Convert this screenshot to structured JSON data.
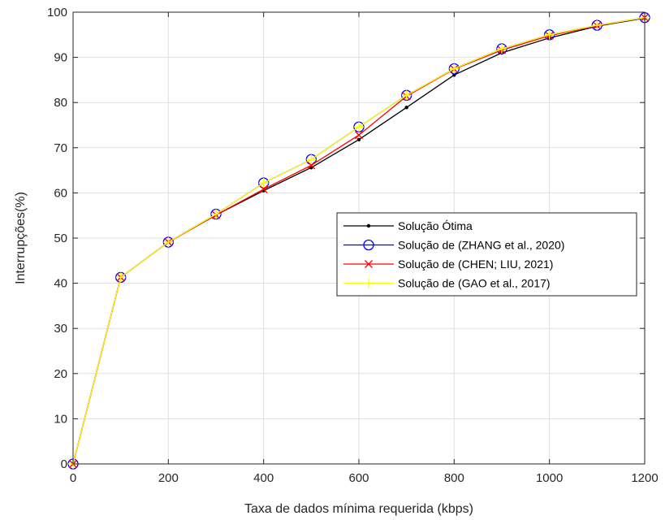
{
  "chart_data": {
    "type": "line",
    "title": "",
    "xlabel": "Taxa de dados mínima requerida (kbps)",
    "ylabel": "Interrupções(%)",
    "xlim": [
      0,
      1200
    ],
    "ylim": [
      0,
      100
    ],
    "xticks": [
      0,
      200,
      400,
      600,
      800,
      1000,
      1200
    ],
    "yticks": [
      0,
      10,
      20,
      30,
      40,
      50,
      60,
      70,
      80,
      90,
      100
    ],
    "grid": true,
    "legend_position": "center-right",
    "x": [
      0,
      100,
      200,
      300,
      400,
      500,
      600,
      700,
      800,
      900,
      1000,
      1100,
      1200
    ],
    "series": [
      {
        "name": "Solução Ótima",
        "color": "#000000",
        "marker": "dot",
        "values": [
          0,
          41.3,
          49.1,
          55.1,
          60.5,
          65.6,
          71.8,
          78.9,
          86.1,
          91.0,
          94.3,
          96.9,
          98.7
        ]
      },
      {
        "name": "Solução de (ZHANG et al., 2020)",
        "color": "#0000ff",
        "marker": "circle",
        "values": [
          0,
          41.3,
          49.1,
          55.3,
          62.2,
          67.4,
          74.6,
          81.6,
          87.5,
          91.9,
          95.0,
          97.1,
          98.8
        ]
      },
      {
        "name": "Solução de (CHEN; LIU, 2021)",
        "color": "#ff0000",
        "marker": "x",
        "values": [
          0,
          41.3,
          49.1,
          55.1,
          60.8,
          66.1,
          72.8,
          81.4,
          87.4,
          91.6,
          94.8,
          97.0,
          98.8
        ]
      },
      {
        "name": "Solução de (GAO et al., 2017)",
        "color": "#ffff00",
        "marker": "plus",
        "values": [
          0,
          41.3,
          49.1,
          55.3,
          62.2,
          67.4,
          74.6,
          81.6,
          87.5,
          91.9,
          95.0,
          97.1,
          98.8
        ]
      }
    ]
  }
}
